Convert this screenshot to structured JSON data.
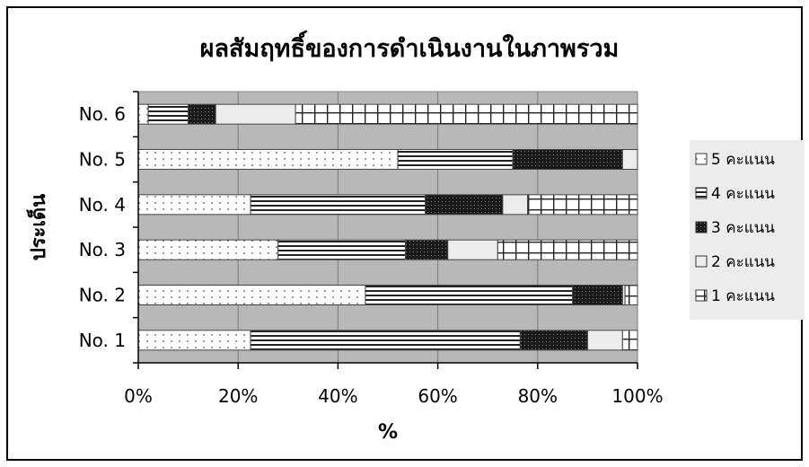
{
  "chart_data": {
    "type": "bar",
    "orientation": "horizontal",
    "stacked": "percent",
    "title": "ผลสัมฤทธิ์ของการดำเนินงานในภาพรวม",
    "xlabel": "%",
    "ylabel": "ประเด็น",
    "xlim": [
      0,
      100
    ],
    "xticks": [
      "0%",
      "20%",
      "40%",
      "60%",
      "80%",
      "100%"
    ],
    "categories": [
      "No. 1",
      "No. 2",
      "No. 3",
      "No. 4",
      "No. 5",
      "No. 6"
    ],
    "grid": "vertical",
    "legend": "right",
    "series": [
      {
        "name": "5 คะแนน",
        "pattern": "dots",
        "values": [
          22.5,
          45.5,
          28.0,
          22.5,
          52.0,
          2.0
        ]
      },
      {
        "name": "4 คะแนน",
        "pattern": "horizontal",
        "values": [
          54.0,
          41.5,
          25.5,
          35.0,
          23.0,
          8.0
        ]
      },
      {
        "name": "3 คะแนน",
        "pattern": "dark",
        "values": [
          13.5,
          10.0,
          8.5,
          15.5,
          22.0,
          5.5
        ]
      },
      {
        "name": "2 คะแนน",
        "pattern": "light",
        "values": [
          7.0,
          0.5,
          10.0,
          5.0,
          3.0,
          16.0
        ]
      },
      {
        "name": "1 คะแนน",
        "pattern": "grid",
        "values": [
          3.0,
          2.5,
          28.0,
          22.0,
          0.0,
          68.5
        ]
      }
    ],
    "colors": {
      "plot_bg": "#b8b8b8",
      "bar_edge": "#444444",
      "frame": "#000000"
    }
  }
}
